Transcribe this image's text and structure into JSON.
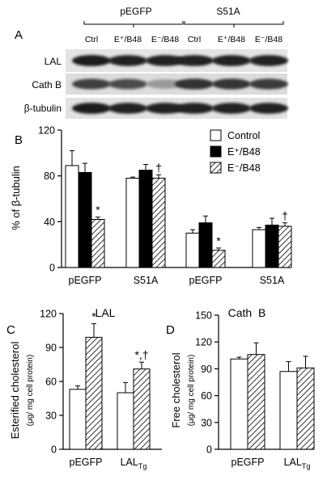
{
  "panel_a": {
    "panel_letter": "A",
    "group_labels": [
      "pEGFP",
      "S51A"
    ],
    "lane_labels": [
      "Ctrl",
      "E⁺/B48",
      "E⁻/B48",
      "Ctrl",
      "E⁺/B48",
      "E⁻/B48"
    ],
    "row_labels": [
      "LAL",
      "Cath B",
      "β-tubulin"
    ],
    "band_intensity": [
      [
        0.92,
        0.9,
        0.88,
        0.9,
        0.9,
        0.9
      ],
      [
        0.75,
        0.7,
        0.35,
        0.82,
        0.8,
        0.78
      ],
      [
        0.92,
        0.9,
        0.9,
        0.9,
        0.9,
        0.9
      ]
    ]
  },
  "chart_data": [
    {
      "type": "bar",
      "panel_letter": "B",
      "ylabel": "% of β-tubulin",
      "ylim": [
        0,
        120
      ],
      "yticks": [
        "0",
        "40",
        "80",
        "120"
      ],
      "categories": [
        "pEGFP",
        "S51A",
        "pEGFP",
        "S51A"
      ],
      "category_groups": [
        "LAL",
        "Cath  B"
      ],
      "legend_position": "top-right",
      "series": [
        {
          "name": "Control",
          "values": [
            89,
            78,
            30,
            33
          ],
          "errors": [
            13,
            1,
            3,
            2
          ],
          "fill": "white"
        },
        {
          "name": "E⁺/B48",
          "values": [
            83,
            85,
            39,
            37
          ],
          "errors": [
            8,
            5,
            6,
            6
          ],
          "fill": "black"
        },
        {
          "name": "E⁻/B48",
          "values": [
            42,
            78,
            15,
            36
          ],
          "errors": [
            2,
            3,
            2,
            3
          ],
          "fill": "hatch"
        }
      ],
      "annotations": [
        {
          "category": 0,
          "series": 2,
          "text": "*"
        },
        {
          "category": 1,
          "series": 2,
          "text": "†"
        },
        {
          "category": 2,
          "series": 2,
          "text": "*"
        },
        {
          "category": 3,
          "series": 2,
          "text": "†"
        }
      ]
    },
    {
      "type": "bar",
      "panel_letter": "C",
      "ylabel": "Esterified cholesterol",
      "ylabel_unit": "(μg/ mg cell protein)",
      "ylim": [
        0,
        120
      ],
      "yticks": [
        "0",
        "30",
        "60",
        "90",
        "120"
      ],
      "categories": [
        "pEGFP",
        "LAL"
      ],
      "category_subscripts": [
        "",
        "Tg"
      ],
      "series": [
        {
          "values": [
            53,
            50
          ],
          "errors": [
            3,
            9
          ],
          "fill": "white"
        },
        {
          "values": [
            99,
            71
          ],
          "errors": [
            12,
            6
          ],
          "fill": "hatch"
        }
      ],
      "annotations": [
        {
          "category": 0,
          "series": 1,
          "text": "*"
        },
        {
          "category": 1,
          "series": 1,
          "text": "*,†"
        }
      ]
    },
    {
      "type": "bar",
      "panel_letter": "D",
      "ylabel": "Free cholesterol",
      "ylabel_unit": "(μg/ mg cell protein)",
      "ylim": [
        0,
        150
      ],
      "yticks": [
        "0",
        "30",
        "60",
        "90",
        "120",
        "150"
      ],
      "categories": [
        "pEGFP",
        "LAL"
      ],
      "category_subscripts": [
        "",
        "Tg"
      ],
      "series": [
        {
          "values": [
            101,
            87
          ],
          "errors": [
            2,
            11
          ],
          "fill": "white"
        },
        {
          "values": [
            106,
            91
          ],
          "errors": [
            13,
            13
          ],
          "fill": "hatch"
        }
      ],
      "annotations": []
    }
  ]
}
